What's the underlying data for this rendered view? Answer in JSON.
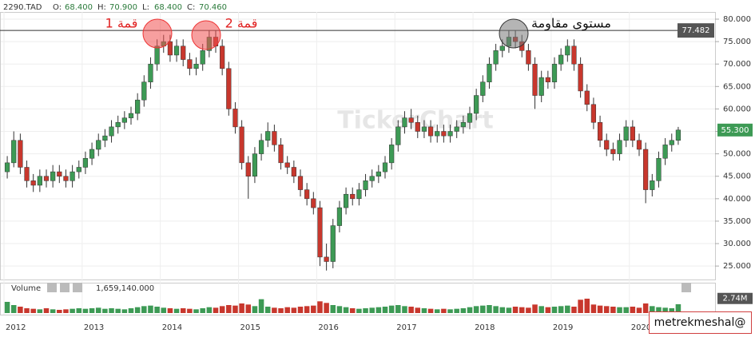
{
  "chart_data": {
    "type": "candlestick",
    "symbol": "2290.TAD",
    "readout": [
      {
        "key": "O:",
        "text": "68.400"
      },
      {
        "key": "H:",
        "text": "70.900"
      },
      {
        "key": "L:",
        "text": "68.400"
      },
      {
        "key": "C:",
        "text": "70.460"
      }
    ],
    "watermark": "TickerChart",
    "categories": [
      "2012",
      null,
      null,
      null,
      null,
      null,
      null,
      null,
      null,
      null,
      null,
      null,
      "2013",
      null,
      null,
      null,
      null,
      null,
      null,
      null,
      null,
      null,
      null,
      null,
      "2014",
      null,
      null,
      null,
      null,
      null,
      null,
      null,
      null,
      null,
      null,
      null,
      "2015",
      null,
      null,
      null,
      null,
      null,
      null,
      null,
      null,
      null,
      null,
      null,
      "2016",
      null,
      null,
      null,
      null,
      null,
      null,
      null,
      null,
      null,
      null,
      null,
      "2017",
      null,
      null,
      null,
      null,
      null,
      null,
      null,
      null,
      null,
      null,
      null,
      "2018",
      null,
      null,
      null,
      null,
      null,
      null,
      null,
      null,
      null,
      null,
      null,
      "2019",
      null,
      null,
      null,
      null,
      null,
      null,
      null,
      null,
      null,
      null,
      null,
      "2020",
      null,
      null,
      null,
      null,
      null,
      null,
      null
    ],
    "open": [
      46,
      48,
      53,
      47,
      44,
      43,
      45,
      44,
      46,
      45,
      44,
      46,
      47,
      49,
      51,
      53,
      54,
      56,
      57,
      58,
      59,
      62,
      66,
      70,
      74,
      75,
      72,
      74,
      71,
      69,
      70,
      73,
      76,
      74,
      69,
      60,
      56,
      48,
      45,
      50,
      53,
      55,
      52,
      48,
      47,
      45,
      42,
      40,
      38,
      27,
      26,
      34,
      38,
      41,
      40,
      42,
      44,
      45,
      46,
      48,
      52,
      56,
      58,
      57,
      55,
      56,
      54,
      55,
      54,
      55,
      56,
      57,
      59,
      63,
      66,
      70,
      73,
      74,
      76,
      75,
      73,
      70,
      63,
      67,
      66,
      70,
      72,
      74,
      70,
      64,
      61,
      57,
      53,
      51,
      50,
      53,
      56,
      53,
      51,
      42,
      44,
      49,
      52,
      53
    ],
    "high": [
      49.5,
      55,
      54.5,
      48.5,
      45.5,
      46.5,
      46.5,
      47.5,
      47.5,
      46.5,
      47.5,
      48.5,
      50.5,
      52.5,
      54.5,
      55.5,
      57.5,
      58.5,
      59.5,
      60.5,
      63.5,
      67.5,
      71.5,
      75.5,
      76.5,
      76.5,
      75.5,
      75.5,
      72.5,
      71.5,
      74.5,
      77.5,
      77.5,
      75.5,
      70.5,
      61.5,
      57.5,
      49.5,
      51.5,
      54.5,
      57,
      56.5,
      53.5,
      49.5,
      48.5,
      46.5,
      43.5,
      41.5,
      39.5,
      30,
      35.5,
      39.5,
      42.5,
      42.5,
      43.5,
      45.5,
      46.5,
      47.5,
      49.5,
      53.5,
      57.5,
      59.5,
      60,
      58.5,
      57.5,
      57.5,
      56.5,
      56.5,
      56.5,
      57.5,
      58.5,
      60.5,
      64.5,
      67.5,
      71.5,
      74.5,
      75.5,
      77.5,
      77.5,
      76.5,
      74.5,
      71.5,
      68.5,
      68.5,
      71.5,
      73.5,
      75.5,
      75.5,
      71.5,
      65.5,
      62.5,
      58.5,
      54.5,
      52.5,
      54.5,
      57.5,
      57.5,
      54.5,
      52.5,
      45.5,
      50.5,
      53.5,
      54.5,
      56
    ],
    "low": [
      44.5,
      47,
      45.5,
      42.5,
      41.5,
      41.5,
      42.5,
      42.5,
      43.5,
      42.5,
      42.5,
      44.5,
      45.5,
      47.5,
      49.5,
      51.5,
      52.5,
      54.5,
      55.5,
      56.5,
      57.5,
      60.5,
      64.5,
      68.5,
      72.5,
      70.5,
      70.5,
      69.5,
      67.5,
      67.5,
      68.5,
      71.5,
      72.5,
      67.5,
      58.5,
      54.5,
      46.5,
      40,
      43.5,
      48.5,
      51.5,
      50.5,
      46.5,
      45.5,
      43.5,
      40.5,
      38.5,
      36.5,
      25,
      24,
      24.5,
      32.5,
      36.5,
      38.5,
      38.5,
      40.5,
      42.5,
      43.5,
      44.5,
      46.5,
      50.5,
      54.5,
      55.5,
      53.5,
      53.5,
      52.5,
      52.5,
      52.5,
      52.5,
      53.5,
      54.5,
      55.5,
      57.5,
      61.5,
      64.5,
      68.5,
      71.5,
      72.5,
      73.5,
      71.5,
      68.5,
      60,
      61.5,
      64.5,
      64.5,
      68.5,
      70.5,
      68.5,
      62.5,
      59.5,
      55.5,
      51.5,
      49.5,
      48.5,
      48.5,
      51.5,
      51.5,
      49.5,
      39,
      40.5,
      42.5,
      47.5,
      50.5,
      52
    ],
    "close": [
      48,
      53,
      47,
      44,
      43,
      45,
      44,
      46,
      45,
      44,
      46,
      47,
      49,
      51,
      53,
      54,
      56,
      57,
      58,
      59,
      62,
      66,
      70,
      74,
      75,
      72,
      74,
      71,
      69,
      70,
      73,
      76,
      74,
      69,
      60,
      56,
      48,
      45,
      50,
      53,
      55,
      52,
      48,
      47,
      45,
      42,
      40,
      38,
      27,
      26,
      34,
      38,
      41,
      40,
      42,
      44,
      45,
      46,
      48,
      52,
      56,
      58,
      57,
      55,
      56,
      54,
      55,
      54,
      55,
      56,
      57,
      59,
      63,
      66,
      70,
      73,
      74,
      76,
      75,
      73,
      70,
      63,
      67,
      66,
      70,
      72,
      74,
      70,
      64,
      61,
      57,
      53,
      51,
      50,
      53,
      56,
      53,
      51,
      42,
      44,
      49,
      52,
      53,
      55.3
    ],
    "up_color": "#3d9a55",
    "down_color": "#c8372d",
    "ylim": [
      22,
      81.6
    ],
    "yticks": [
      {
        "value": 25,
        "label": "25.000"
      },
      {
        "value": 30,
        "label": "30.000"
      },
      {
        "value": 35,
        "label": "35.000"
      },
      {
        "value": 40,
        "label": "40.000"
      },
      {
        "value": 45,
        "label": "45.000"
      },
      {
        "value": 50,
        "label": "50.000"
      },
      {
        "value": 55,
        "label": "55.000"
      },
      {
        "value": 60,
        "label": "60.000"
      },
      {
        "value": 65,
        "label": "65.000"
      },
      {
        "value": 70,
        "label": "70.000"
      },
      {
        "value": 75,
        "label": "75.000"
      },
      {
        "value": 80,
        "label": "80.000"
      }
    ],
    "grid": true,
    "resistance": {
      "value": 77.482,
      "label": "77.482"
    },
    "last_price": {
      "value": 55.3,
      "label": "55.300"
    },
    "annotations": [
      "قمة 1",
      "قمة 2",
      "مستوى مقاومة"
    ],
    "volume_title": "Volume",
    "volume_readout": "1,659,140.000",
    "volumes": [
      2100000,
      1500000,
      1200000,
      900000,
      800000,
      700000,
      900000,
      700000,
      600000,
      700000,
      800000,
      900000,
      800000,
      900000,
      1000000,
      800000,
      900000,
      800000,
      700000,
      900000,
      1100000,
      1300000,
      1400000,
      1200000,
      1000000,
      900000,
      800000,
      900000,
      800000,
      700000,
      900000,
      1100000,
      1000000,
      1300000,
      1500000,
      1400000,
      1800000,
      1600000,
      1300000,
      2600000,
      1200000,
      1000000,
      900000,
      1100000,
      1000000,
      1200000,
      1300000,
      1400000,
      2200000,
      1900000,
      1500000,
      1300000,
      1100000,
      900000,
      800000,
      900000,
      1000000,
      1100000,
      1200000,
      1400000,
      1500000,
      1300000,
      1200000,
      1000000,
      900000,
      800000,
      700000,
      800000,
      700000,
      800000,
      900000,
      1100000,
      1300000,
      1400000,
      1500000,
      1300000,
      1100000,
      1000000,
      1200000,
      1100000,
      1000000,
      1600000,
      1300000,
      1100000,
      1200000,
      1300000,
      1400000,
      1200000,
      2500000,
      2700000,
      1600000,
      1400000,
      1300000,
      1200000,
      1100000,
      1100000,
      1200000,
      1000000,
      1800000,
      1300000,
      1100000,
      1000000,
      900000,
      1659140
    ],
    "volume_ylim": [
      0,
      3000000
    ],
    "volume_yticks": [
      {
        "value": 2740000,
        "label": "2.74M"
      }
    ],
    "credit": "metrekmeshal@"
  }
}
